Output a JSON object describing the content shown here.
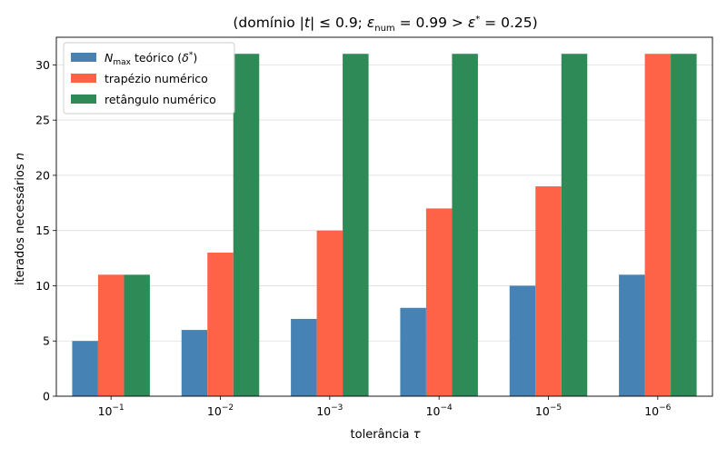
{
  "chart_data": {
    "type": "bar",
    "title": "(domínio |t| ≤ 0.9; ε_num = 0.99 > ε* = 0.25)",
    "xlabel": "tolerância τ",
    "ylabel": "iterados necessários n",
    "categories": [
      "10⁻¹",
      "10⁻²",
      "10⁻³",
      "10⁻⁴",
      "10⁻⁵",
      "10⁻⁶"
    ],
    "category_exponents": [
      "−1",
      "−2",
      "−3",
      "−4",
      "−5",
      "−6"
    ],
    "ylim": [
      0,
      32.5
    ],
    "yticks": [
      0,
      5,
      10,
      15,
      20,
      25,
      30
    ],
    "grid": "horizontal",
    "legend_position": "top-left",
    "series": [
      {
        "name": "N_max teórico (δ*)",
        "color": "#4682b4",
        "values": [
          5,
          6,
          7,
          8,
          10,
          11
        ]
      },
      {
        "name": "trapézio numérico",
        "color": "#ff6347",
        "values": [
          11,
          13,
          15,
          17,
          19,
          31
        ]
      },
      {
        "name": "retângulo numérico",
        "color": "#2e8b57",
        "values": [
          11,
          31,
          31,
          31,
          31,
          31
        ]
      }
    ]
  }
}
